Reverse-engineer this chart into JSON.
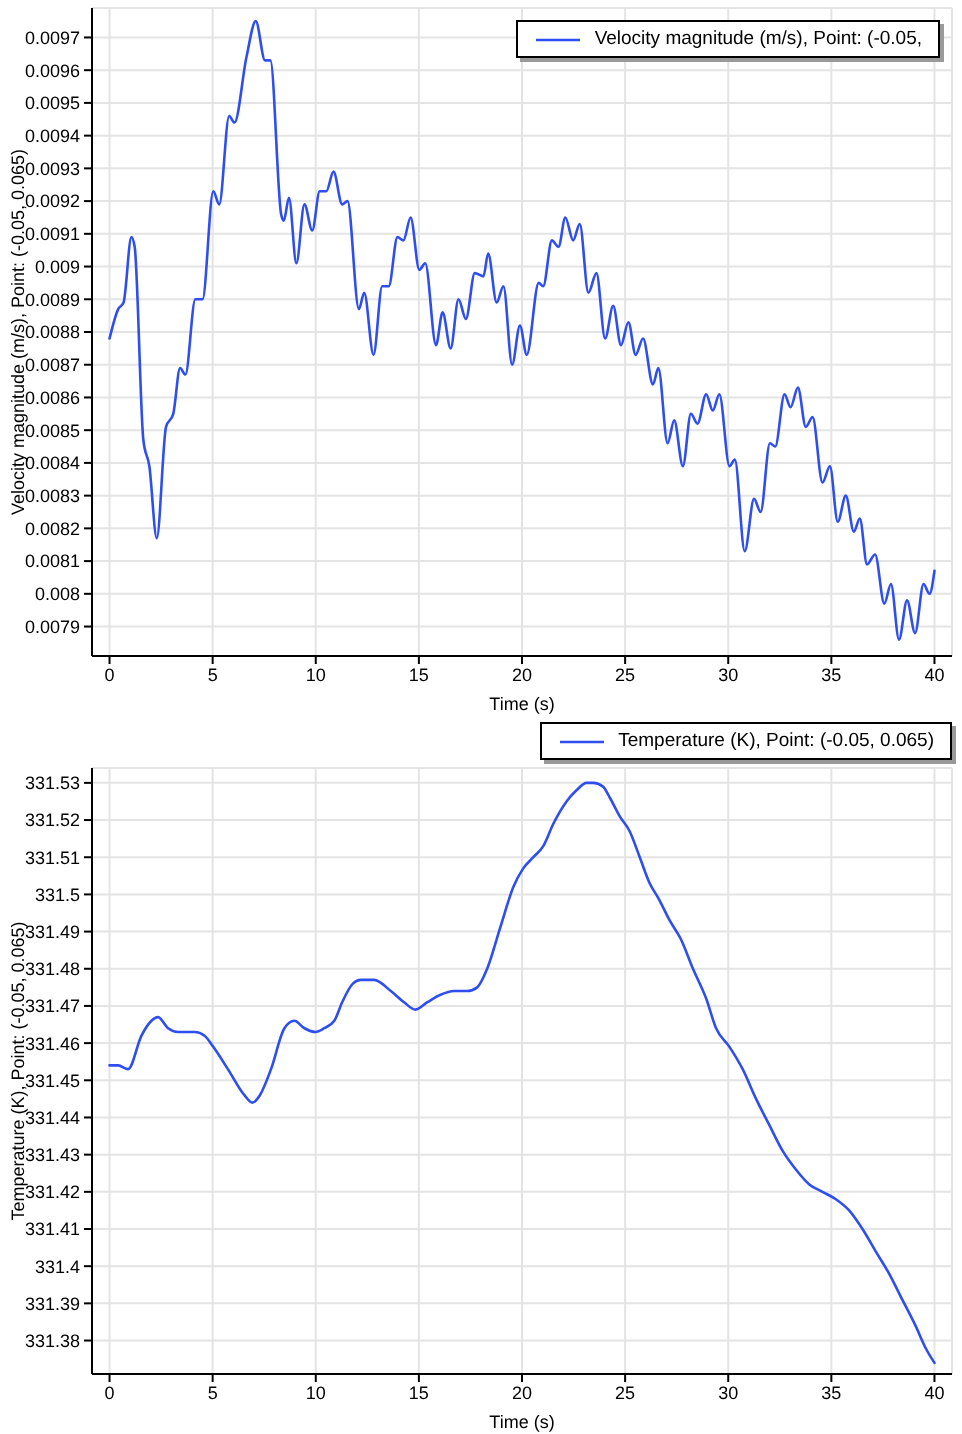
{
  "chart_data": [
    {
      "type": "line",
      "xlabel": "Time (s)",
      "ylabel": "Velocity magnitude (m/s), Point: (-0.05, 0.065)",
      "x": [
        0,
        0.42,
        0.68,
        1.06,
        1.22,
        1.64,
        1.93,
        2.29,
        2.74,
        3.09,
        3.42,
        3.68,
        4.16,
        4.51,
        5.03,
        5.32,
        5.8,
        6.06,
        6.64,
        7.09,
        7.54,
        7.8,
        8.32,
        8.45,
        8.7,
        9.06,
        9.45,
        9.83,
        10.19,
        10.51,
        10.86,
        11.28,
        11.54,
        12.09,
        12.35,
        12.8,
        13.22,
        13.54,
        13.96,
        14.25,
        14.6,
        15.02,
        15.31,
        15.83,
        16.15,
        16.54,
        16.92,
        17.28,
        17.71,
        18.13,
        18.36,
        18.77,
        19.1,
        19.52,
        19.9,
        20.23,
        20.81,
        21.03,
        21.45,
        21.77,
        22.1,
        22.48,
        22.8,
        23.22,
        23.61,
        24.03,
        24.42,
        24.8,
        25.16,
        25.51,
        25.87,
        26.35,
        26.61,
        27.06,
        27.38,
        27.8,
        28.19,
        28.51,
        28.93,
        29.25,
        29.57,
        30.06,
        30.32,
        30.8,
        31.25,
        31.57,
        32.02,
        32.28,
        32.73,
        33.02,
        33.38,
        33.76,
        34.09,
        34.57,
        34.93,
        35.31,
        35.7,
        36.09,
        36.38,
        36.73,
        37.12,
        37.57,
        37.89,
        38.28,
        38.67,
        39.06,
        39.47,
        39.76,
        40
      ],
      "series": [
        {
          "name": "Velocity magnitude (m/s), Point: (-0.05,",
          "color": "#2e4ef0",
          "values": [
            0.00878,
            0.00887,
            0.00889,
            0.00909,
            0.00906,
            0.00847,
            0.00839,
            0.00817,
            0.00851,
            0.00855,
            0.00869,
            0.00867,
            0.0089,
            0.0089,
            0.00923,
            0.00919,
            0.00946,
            0.00944,
            0.00964,
            0.00975,
            0.00963,
            0.00963,
            0.00916,
            0.00914,
            0.00921,
            0.00901,
            0.00919,
            0.00911,
            0.00923,
            0.00923,
            0.00929,
            0.00919,
            0.0092,
            0.00887,
            0.00892,
            0.00873,
            0.00894,
            0.00894,
            0.00909,
            0.00908,
            0.00915,
            0.00899,
            0.00901,
            0.00876,
            0.00886,
            0.00875,
            0.0089,
            0.00884,
            0.00898,
            0.00897,
            0.00904,
            0.00889,
            0.00894,
            0.0087,
            0.00882,
            0.00873,
            0.00895,
            0.00894,
            0.00908,
            0.00906,
            0.00915,
            0.00908,
            0.00913,
            0.00892,
            0.00898,
            0.00878,
            0.00888,
            0.00876,
            0.00883,
            0.00873,
            0.00878,
            0.00864,
            0.00869,
            0.00846,
            0.00853,
            0.00839,
            0.00855,
            0.00852,
            0.00861,
            0.00856,
            0.00861,
            0.00839,
            0.00841,
            0.00813,
            0.00829,
            0.00825,
            0.00846,
            0.00845,
            0.00861,
            0.00857,
            0.00863,
            0.00851,
            0.00854,
            0.00834,
            0.00839,
            0.00822,
            0.0083,
            0.00819,
            0.00823,
            0.00809,
            0.00812,
            0.00797,
            0.00803,
            0.00786,
            0.00798,
            0.00788,
            0.00803,
            0.008,
            0.00807
          ]
        }
      ],
      "xlim": [
        -0.85,
        40.85
      ],
      "ylim": [
        0.00781,
        0.00979
      ],
      "xticks": [
        0,
        5,
        10,
        15,
        20,
        25,
        30,
        35,
        40
      ],
      "yticks": [
        0.0079,
        0.008,
        0.0081,
        0.0082,
        0.0083,
        0.0084,
        0.0085,
        0.0086,
        0.0087,
        0.0088,
        0.0089,
        0.009,
        0.0091,
        0.0092,
        0.0093,
        0.0094,
        0.0095,
        0.0096,
        0.0097
      ],
      "grid": true,
      "legend": "top right"
    },
    {
      "type": "line",
      "xlabel": "Time (s)",
      "ylabel": "Temperature (K), Point: (-0.05, 0.065)",
      "x": [
        0,
        0.42,
        0.9,
        1.55,
        2.03,
        2.35,
        2.84,
        3.32,
        4.13,
        4.61,
        5.03,
        5.74,
        6.54,
        6.93,
        7.29,
        7.83,
        8.48,
        8.96,
        9.45,
        9.99,
        10.41,
        10.9,
        11.28,
        11.8,
        12.19,
        12.83,
        13.64,
        14.28,
        14.83,
        15.41,
        16.05,
        16.7,
        17.34,
        17.83,
        18.31,
        18.94,
        19.58,
        20.06,
        20.55,
        21.03,
        21.52,
        22.16,
        22.64,
        23.13,
        23.45,
        23.93,
        24.26,
        24.74,
        25.22,
        25.71,
        26.19,
        26.61,
        27.16,
        27.7,
        28.29,
        28.93,
        29.41,
        30.06,
        30.7,
        31.35,
        31.99,
        32.64,
        33.28,
        33.93,
        34.57,
        35.22,
        35.86,
        36.51,
        37.15,
        37.8,
        38.44,
        39.08,
        39.57,
        40
      ],
      "series": [
        {
          "name": "Temperature (K), Point: (-0.05, 0.065)",
          "color": "#2e4ef0",
          "values": [
            331.454,
            331.454,
            331.453,
            331.462,
            331.466,
            331.467,
            331.464,
            331.463,
            331.463,
            331.462,
            331.459,
            331.453,
            331.446,
            331.444,
            331.446,
            331.453,
            331.464,
            331.466,
            331.464,
            331.463,
            331.464,
            331.466,
            331.471,
            331.476,
            331.477,
            331.477,
            331.474,
            331.471,
            331.469,
            331.471,
            331.473,
            331.474,
            331.474,
            331.475,
            331.48,
            331.491,
            331.502,
            331.507,
            331.51,
            331.513,
            331.519,
            331.525,
            331.528,
            331.53,
            331.53,
            331.529,
            331.526,
            331.521,
            331.517,
            331.51,
            331.503,
            331.499,
            331.493,
            331.488,
            331.48,
            331.472,
            331.464,
            331.459,
            331.453,
            331.445,
            331.438,
            331.431,
            331.426,
            331.422,
            331.42,
            331.418,
            331.415,
            331.41,
            331.404,
            331.398,
            331.391,
            331.384,
            331.378,
            331.374
          ]
        }
      ],
      "xlim": [
        -0.85,
        40.85
      ],
      "ylim": [
        331.371,
        331.534
      ],
      "xticks": [
        0,
        5,
        10,
        15,
        20,
        25,
        30,
        35,
        40
      ],
      "yticks": [
        331.38,
        331.39,
        331.4,
        331.41,
        331.42,
        331.43,
        331.44,
        331.45,
        331.46,
        331.47,
        331.48,
        331.49,
        331.5,
        331.51,
        331.52,
        331.53
      ],
      "grid": true,
      "legend": "top right"
    }
  ]
}
